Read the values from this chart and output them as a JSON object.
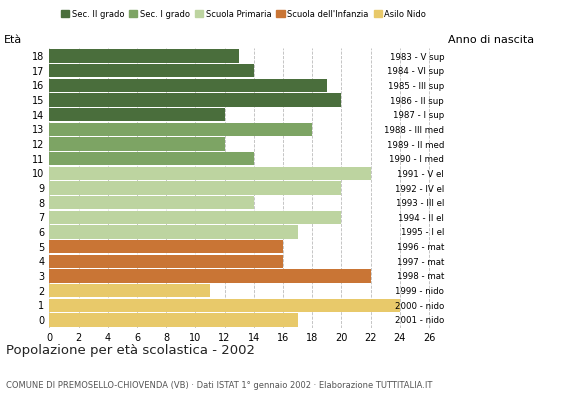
{
  "ages": [
    18,
    17,
    16,
    15,
    14,
    13,
    12,
    11,
    10,
    9,
    8,
    7,
    6,
    5,
    4,
    3,
    2,
    1,
    0
  ],
  "values": [
    13,
    14,
    19,
    20,
    12,
    18,
    12,
    14,
    22,
    20,
    14,
    20,
    17,
    16,
    16,
    22,
    11,
    24,
    17
  ],
  "years": [
    "1983 - V sup",
    "1984 - VI sup",
    "1985 - III sup",
    "1986 - II sup",
    "1987 - I sup",
    "1988 - III med",
    "1989 - II med",
    "1990 - I med",
    "1991 - V el",
    "1992 - IV el",
    "1993 - III el",
    "1994 - II el",
    "1995 - I el",
    "1996 - mat",
    "1997 - mat",
    "1998 - mat",
    "1999 - nido",
    "2000 - nido",
    "2001 - nido"
  ],
  "cat_ages": {
    "Sec. II grado": [
      18,
      17,
      16,
      15,
      14
    ],
    "Sec. I grado": [
      13,
      12,
      11
    ],
    "Scuola Primaria": [
      10,
      9,
      8,
      7,
      6
    ],
    "Scuola dell'Infanzia": [
      5,
      4,
      3
    ],
    "Asilo Nido": [
      2,
      1,
      0
    ]
  },
  "cat_colors": {
    "Sec. II grado": "#4a6e3c",
    "Sec. I grado": "#7da464",
    "Scuola Primaria": "#bdd4a0",
    "Scuola dell'Infanzia": "#c97535",
    "Asilo Nido": "#e8c96a"
  },
  "title": "Popolazione per età scolastica - 2002",
  "subtitle": "COMUNE DI PREMOSELLO-CHIOVENDA (VB) · Dati ISTAT 1° gennaio 2002 · Elaborazione TUTTITALIA.IT",
  "label_eta": "Età",
  "label_anno": "Anno di nascita",
  "xticks": [
    0,
    2,
    4,
    6,
    8,
    10,
    12,
    14,
    16,
    18,
    20,
    22,
    24,
    26
  ],
  "background_color": "#ffffff",
  "grid_color": "#aaaaaa",
  "bar_height": 0.92
}
